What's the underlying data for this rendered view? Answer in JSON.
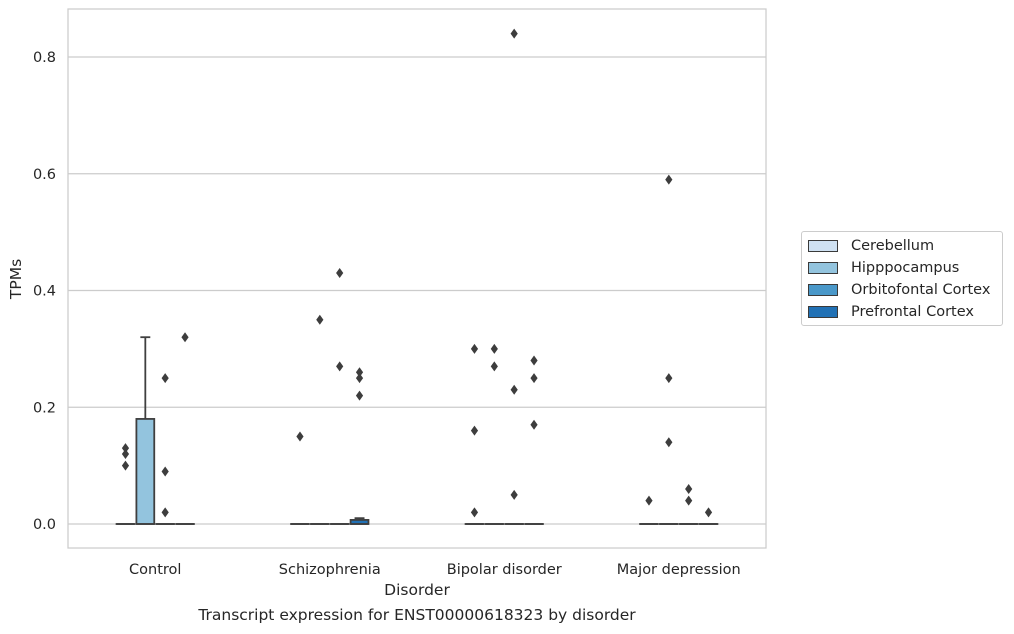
{
  "chart_data": {
    "type": "box",
    "title": "",
    "caption": "Transcript expression for ENST00000618323 by disorder",
    "xlabel": "Disorder",
    "ylabel": "TPMs",
    "ylim": [
      -0.04,
      0.885
    ],
    "yticks": [
      0.0,
      0.2,
      0.4,
      0.6,
      0.8
    ],
    "ytick_labels": [
      "0.0",
      "0.2",
      "0.4",
      "0.6",
      "0.8"
    ],
    "grid": "horizontal",
    "legend_position": "right",
    "categories": [
      "Control",
      "Schizophrenia",
      "Bipolar disorder",
      "Major depression"
    ],
    "series": [
      {
        "name": "Cerebellum",
        "color": "#cfe1f2",
        "boxes": [
          {
            "q1": 0,
            "median": 0,
            "q3": 0,
            "whisker_low": 0,
            "whisker_high": 0,
            "outliers": [
              0.13,
              0.12,
              0.1
            ]
          },
          {
            "q1": 0,
            "median": 0,
            "q3": 0,
            "whisker_low": 0,
            "whisker_high": 0,
            "outliers": [
              0.15
            ]
          },
          {
            "q1": 0,
            "median": 0,
            "q3": 0,
            "whisker_low": 0,
            "whisker_high": 0,
            "outliers": [
              0.3,
              0.16,
              0.02
            ]
          },
          {
            "q1": 0,
            "median": 0,
            "q3": 0,
            "whisker_low": 0,
            "whisker_high": 0,
            "outliers": [
              0.04
            ]
          }
        ]
      },
      {
        "name": "Hipppocampus",
        "color": "#93c4de",
        "boxes": [
          {
            "q1": 0,
            "median": 0,
            "q3": 0.18,
            "whisker_low": 0,
            "whisker_high": 0.32,
            "outliers": []
          },
          {
            "q1": 0,
            "median": 0,
            "q3": 0,
            "whisker_low": 0,
            "whisker_high": 0,
            "outliers": [
              0.35
            ]
          },
          {
            "q1": 0,
            "median": 0,
            "q3": 0,
            "whisker_low": 0,
            "whisker_high": 0,
            "outliers": [
              0.3,
              0.27
            ]
          },
          {
            "q1": 0,
            "median": 0,
            "q3": 0,
            "whisker_low": 0,
            "whisker_high": 0,
            "outliers": [
              0.59,
              0.25,
              0.14
            ]
          }
        ]
      },
      {
        "name": "Orbitofontal Cortex",
        "color": "#4a98c9",
        "boxes": [
          {
            "q1": 0,
            "median": 0,
            "q3": 0,
            "whisker_low": 0,
            "whisker_high": 0,
            "outliers": [
              0.25,
              0.09,
              0.02
            ]
          },
          {
            "q1": 0,
            "median": 0,
            "q3": 0,
            "whisker_low": 0,
            "whisker_high": 0,
            "outliers": [
              0.43,
              0.27
            ]
          },
          {
            "q1": 0,
            "median": 0,
            "q3": 0,
            "whisker_low": 0,
            "whisker_high": 0,
            "outliers": [
              0.84,
              0.23,
              0.05
            ]
          },
          {
            "q1": 0,
            "median": 0,
            "q3": 0,
            "whisker_low": 0,
            "whisker_high": 0,
            "outliers": [
              0.06,
              0.04
            ]
          }
        ]
      },
      {
        "name": "Prefrontal Cortex",
        "color": "#2171b5",
        "boxes": [
          {
            "q1": 0,
            "median": 0,
            "q3": 0,
            "whisker_low": 0,
            "whisker_high": 0,
            "outliers": [
              0.32
            ]
          },
          {
            "q1": 0,
            "median": 0,
            "q3": 0.007,
            "whisker_low": 0,
            "whisker_high": 0.01,
            "outliers": [
              0.26,
              0.25,
              0.22
            ]
          },
          {
            "q1": 0,
            "median": 0,
            "q3": 0,
            "whisker_low": 0,
            "whisker_high": 0,
            "outliers": [
              0.28,
              0.25,
              0.17
            ]
          },
          {
            "q1": 0,
            "median": 0,
            "q3": 0,
            "whisker_low": 0,
            "whisker_high": 0,
            "outliers": [
              0.02
            ]
          }
        ]
      }
    ]
  }
}
